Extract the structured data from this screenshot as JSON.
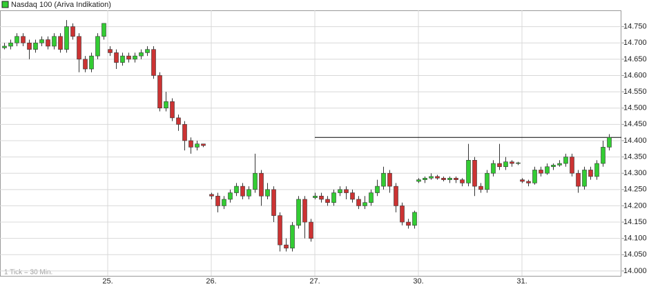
{
  "chart_data": {
    "type": "candlestick",
    "title": "Nasdaq 100 (Ariva Indikation)",
    "footnote": "1 Tick = 30 Min.",
    "up_color": "#33cc33",
    "down_color": "#cc3333",
    "grid": true,
    "reference_line": 14.41,
    "xlim": [
      -2,
      298
    ],
    "xticks": [
      {
        "value": 50,
        "label": "25."
      },
      {
        "value": 100,
        "label": "26."
      },
      {
        "value": 150,
        "label": "27."
      },
      {
        "value": 200,
        "label": "30."
      },
      {
        "value": 250,
        "label": "31."
      }
    ],
    "ylim": [
      13.985,
      14.8
    ],
    "yticks": [
      {
        "value": 14.0,
        "label": "14.000"
      },
      {
        "value": 14.05,
        "label": "14.050"
      },
      {
        "value": 14.1,
        "label": "14.100"
      },
      {
        "value": 14.15,
        "label": "14.150"
      },
      {
        "value": 14.2,
        "label": "14.200"
      },
      {
        "value": 14.25,
        "label": "14.250"
      },
      {
        "value": 14.3,
        "label": "14.300"
      },
      {
        "value": 14.35,
        "label": "14.350"
      },
      {
        "value": 14.4,
        "label": "14.400"
      },
      {
        "value": 14.45,
        "label": "14.450"
      },
      {
        "value": 14.5,
        "label": "14.500"
      },
      {
        "value": 14.55,
        "label": "14.550"
      },
      {
        "value": 14.6,
        "label": "14.600"
      },
      {
        "value": 14.65,
        "label": "14.650"
      },
      {
        "value": 14.7,
        "label": "14.700"
      },
      {
        "value": 14.75,
        "label": "14.750"
      }
    ],
    "candles": [
      [
        0,
        14.685,
        14.7,
        14.68,
        14.69
      ],
      [
        3,
        14.69,
        14.71,
        14.68,
        14.7
      ],
      [
        6,
        14.7,
        14.73,
        14.69,
        14.72
      ],
      [
        9,
        14.72,
        14.73,
        14.69,
        14.7
      ],
      [
        12,
        14.7,
        14.71,
        14.65,
        14.68
      ],
      [
        15,
        14.68,
        14.71,
        14.67,
        14.7
      ],
      [
        18,
        14.7,
        14.72,
        14.69,
        14.71
      ],
      [
        21,
        14.71,
        14.72,
        14.68,
        14.69
      ],
      [
        24,
        14.69,
        14.73,
        14.68,
        14.72
      ],
      [
        27,
        14.72,
        14.73,
        14.67,
        14.68
      ],
      [
        30,
        14.68,
        14.77,
        14.67,
        14.75
      ],
      [
        33,
        14.75,
        14.76,
        14.71,
        14.72
      ],
      [
        36,
        14.72,
        14.73,
        14.61,
        14.65
      ],
      [
        39,
        14.65,
        14.66,
        14.61,
        14.62
      ],
      [
        42,
        14.62,
        14.67,
        14.61,
        14.66
      ],
      [
        45,
        14.66,
        14.73,
        14.65,
        14.72
      ],
      [
        48,
        14.72,
        14.76,
        14.71,
        14.76
      ],
      [
        51,
        14.68,
        14.69,
        14.66,
        14.67
      ],
      [
        54,
        14.67,
        14.68,
        14.62,
        14.64
      ],
      [
        57,
        14.64,
        14.67,
        14.63,
        14.66
      ],
      [
        60,
        14.66,
        14.67,
        14.64,
        14.65
      ],
      [
        63,
        14.65,
        14.67,
        14.64,
        14.66
      ],
      [
        66,
        14.66,
        14.68,
        14.65,
        14.67
      ],
      [
        69,
        14.67,
        14.69,
        14.66,
        14.68
      ],
      [
        72,
        14.68,
        14.69,
        14.59,
        14.6
      ],
      [
        75,
        14.6,
        14.61,
        14.49,
        14.5
      ],
      [
        78,
        14.5,
        14.55,
        14.49,
        14.52
      ],
      [
        81,
        14.52,
        14.53,
        14.46,
        14.47
      ],
      [
        84,
        14.47,
        14.48,
        14.43,
        14.45
      ],
      [
        87,
        14.45,
        14.46,
        14.37,
        14.4
      ],
      [
        90,
        14.4,
        14.41,
        14.36,
        14.38
      ],
      [
        93,
        14.38,
        14.4,
        14.37,
        14.39
      ],
      [
        96,
        14.39,
        14.39,
        14.38,
        14.385
      ],
      [
        100,
        14.235,
        14.24,
        14.22,
        14.23
      ],
      [
        103,
        14.23,
        14.24,
        14.18,
        14.2
      ],
      [
        106,
        14.2,
        14.23,
        14.19,
        14.22
      ],
      [
        109,
        14.22,
        14.25,
        14.21,
        14.24
      ],
      [
        112,
        14.24,
        14.27,
        14.23,
        14.26
      ],
      [
        115,
        14.26,
        14.27,
        14.22,
        14.23
      ],
      [
        118,
        14.23,
        14.26,
        14.22,
        14.25
      ],
      [
        121,
        14.25,
        14.36,
        14.24,
        14.3
      ],
      [
        124,
        14.3,
        14.31,
        14.2,
        14.23
      ],
      [
        127,
        14.23,
        14.27,
        14.22,
        14.25
      ],
      [
        130,
        14.25,
        14.26,
        14.15,
        14.17
      ],
      [
        133,
        14.17,
        14.18,
        14.06,
        14.08
      ],
      [
        136,
        14.08,
        14.1,
        14.06,
        14.07
      ],
      [
        139,
        14.07,
        14.15,
        14.06,
        14.14
      ],
      [
        142,
        14.14,
        14.23,
        14.13,
        14.22
      ],
      [
        145,
        14.22,
        14.23,
        14.1,
        14.15
      ],
      [
        148,
        14.15,
        14.16,
        14.09,
        14.1
      ],
      [
        150,
        14.225,
        14.24,
        14.22,
        14.23
      ],
      [
        153,
        14.23,
        14.24,
        14.21,
        14.22
      ],
      [
        156,
        14.22,
        14.23,
        14.2,
        14.21
      ],
      [
        159,
        14.21,
        14.25,
        14.2,
        14.24
      ],
      [
        162,
        14.24,
        14.26,
        14.23,
        14.25
      ],
      [
        165,
        14.25,
        14.26,
        14.22,
        14.24
      ],
      [
        168,
        14.24,
        14.25,
        14.21,
        14.22
      ],
      [
        171,
        14.22,
        14.23,
        14.19,
        14.2
      ],
      [
        174,
        14.2,
        14.23,
        14.19,
        14.21
      ],
      [
        177,
        14.21,
        14.25,
        14.2,
        14.24
      ],
      [
        180,
        14.24,
        14.28,
        14.23,
        14.26
      ],
      [
        183,
        14.26,
        14.32,
        14.25,
        14.3
      ],
      [
        186,
        14.3,
        14.31,
        14.24,
        14.26
      ],
      [
        189,
        14.26,
        14.27,
        14.18,
        14.2
      ],
      [
        192,
        14.2,
        14.21,
        14.14,
        14.15
      ],
      [
        195,
        14.15,
        14.16,
        14.13,
        14.14
      ],
      [
        198,
        14.14,
        14.185,
        14.13,
        14.18
      ],
      [
        200,
        14.275,
        14.285,
        14.27,
        14.28
      ],
      [
        203,
        14.28,
        14.29,
        14.27,
        14.285
      ],
      [
        206,
        14.285,
        14.3,
        14.28,
        14.29
      ],
      [
        209,
        14.29,
        14.295,
        14.28,
        14.285
      ],
      [
        212,
        14.285,
        14.29,
        14.275,
        14.28
      ],
      [
        215,
        14.28,
        14.29,
        14.27,
        14.285
      ],
      [
        218,
        14.285,
        14.29,
        14.27,
        14.28
      ],
      [
        221,
        14.28,
        14.285,
        14.26,
        14.27
      ],
      [
        224,
        14.27,
        14.39,
        14.26,
        14.34
      ],
      [
        227,
        14.34,
        14.35,
        14.23,
        14.26
      ],
      [
        230,
        14.26,
        14.27,
        14.24,
        14.25
      ],
      [
        233,
        14.25,
        14.31,
        14.24,
        14.3
      ],
      [
        236,
        14.3,
        14.34,
        14.29,
        14.33
      ],
      [
        239,
        14.33,
        14.39,
        14.31,
        14.32
      ],
      [
        242,
        14.32,
        14.35,
        14.31,
        14.335
      ],
      [
        245,
        14.335,
        14.34,
        14.32,
        14.33
      ],
      [
        248,
        14.33,
        14.335,
        14.325,
        14.332
      ],
      [
        250,
        14.28,
        14.285,
        14.27,
        14.275
      ],
      [
        253,
        14.275,
        14.28,
        14.26,
        14.27
      ],
      [
        256,
        14.27,
        14.32,
        14.265,
        14.31
      ],
      [
        259,
        14.31,
        14.32,
        14.29,
        14.3
      ],
      [
        262,
        14.3,
        14.33,
        14.295,
        14.32
      ],
      [
        265,
        14.32,
        14.33,
        14.31,
        14.325
      ],
      [
        268,
        14.325,
        14.34,
        14.32,
        14.33
      ],
      [
        271,
        14.33,
        14.36,
        14.32,
        14.35
      ],
      [
        274,
        14.35,
        14.36,
        14.29,
        14.3
      ],
      [
        277,
        14.3,
        14.31,
        14.24,
        14.26
      ],
      [
        280,
        14.26,
        14.32,
        14.25,
        14.31
      ],
      [
        283,
        14.31,
        14.32,
        14.28,
        14.29
      ],
      [
        286,
        14.29,
        14.34,
        14.28,
        14.33
      ],
      [
        289,
        14.33,
        14.4,
        14.32,
        14.38
      ],
      [
        292,
        14.38,
        14.42,
        14.37,
        14.41
      ]
    ]
  }
}
